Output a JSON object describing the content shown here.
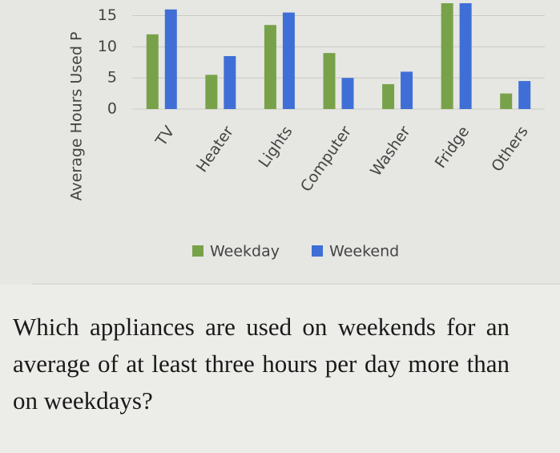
{
  "chart_data": {
    "type": "bar",
    "y_label": "Average Hours Used P",
    "categories": [
      "TV",
      "Heater",
      "Lights",
      "Computer",
      "Washer",
      "Fridge",
      "Others"
    ],
    "series": [
      {
        "name": "Weekday",
        "color": "#78a24a",
        "values": [
          12,
          5.5,
          13.5,
          9,
          4,
          17,
          2.5
        ]
      },
      {
        "name": "Weekend",
        "color": "#3f6fd6",
        "values": [
          16,
          8.5,
          15.5,
          5,
          6,
          17,
          4.5
        ]
      }
    ],
    "ylim": [
      0,
      17
    ],
    "yticks": [
      0,
      5,
      10,
      15
    ],
    "grid": true,
    "legend": "bottom"
  },
  "question": "Which appliances are used on weekends for an average of at least three hours per day more than on weekdays?"
}
